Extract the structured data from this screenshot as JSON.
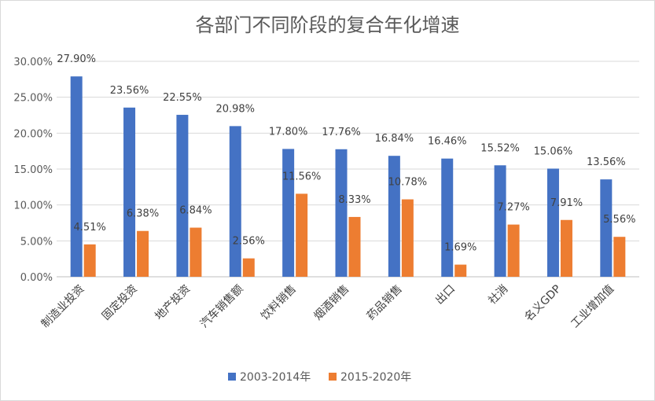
{
  "chart_data": {
    "type": "bar",
    "title": "各部门不同阶段的复合年化增速",
    "categories": [
      "制造业投资",
      "固定投资",
      "地产投资",
      "汽车销售额",
      "饮料销售",
      "烟酒销售",
      "药品销售",
      "出口",
      "社消",
      "名义GDP",
      "工业增加值"
    ],
    "series": [
      {
        "name": "2003-2014年",
        "color": "#4472c4",
        "values": [
          27.9,
          23.56,
          22.55,
          20.98,
          17.8,
          17.76,
          16.84,
          16.46,
          15.52,
          15.06,
          13.56
        ]
      },
      {
        "name": "2015-2020年",
        "color": "#ed7d31",
        "values": [
          4.51,
          6.38,
          6.84,
          2.56,
          11.56,
          8.33,
          10.78,
          1.69,
          7.27,
          7.91,
          5.56
        ]
      }
    ],
    "value_labels": [
      [
        "27.90%",
        "23.56%",
        "22.55%",
        "20.98%",
        "17.80%",
        "17.76%",
        "16.84%",
        "16.46%",
        "15.52%",
        "15.06%",
        "13.56%"
      ],
      [
        "4.51%",
        "6.38%",
        "6.84%",
        "2.56%",
        "11.56%",
        "8.33%",
        "10.78%",
        "1.69%",
        "7.27%",
        "7.91%",
        "5.56%"
      ]
    ],
    "y_ticks": [
      "0.00%",
      "5.00%",
      "10.00%",
      "15.00%",
      "20.00%",
      "25.00%",
      "30.00%"
    ],
    "ylim": [
      0,
      30
    ],
    "y_step": 5,
    "xlabel": "",
    "ylabel": "",
    "grid": true,
    "legend_position": "bottom"
  }
}
